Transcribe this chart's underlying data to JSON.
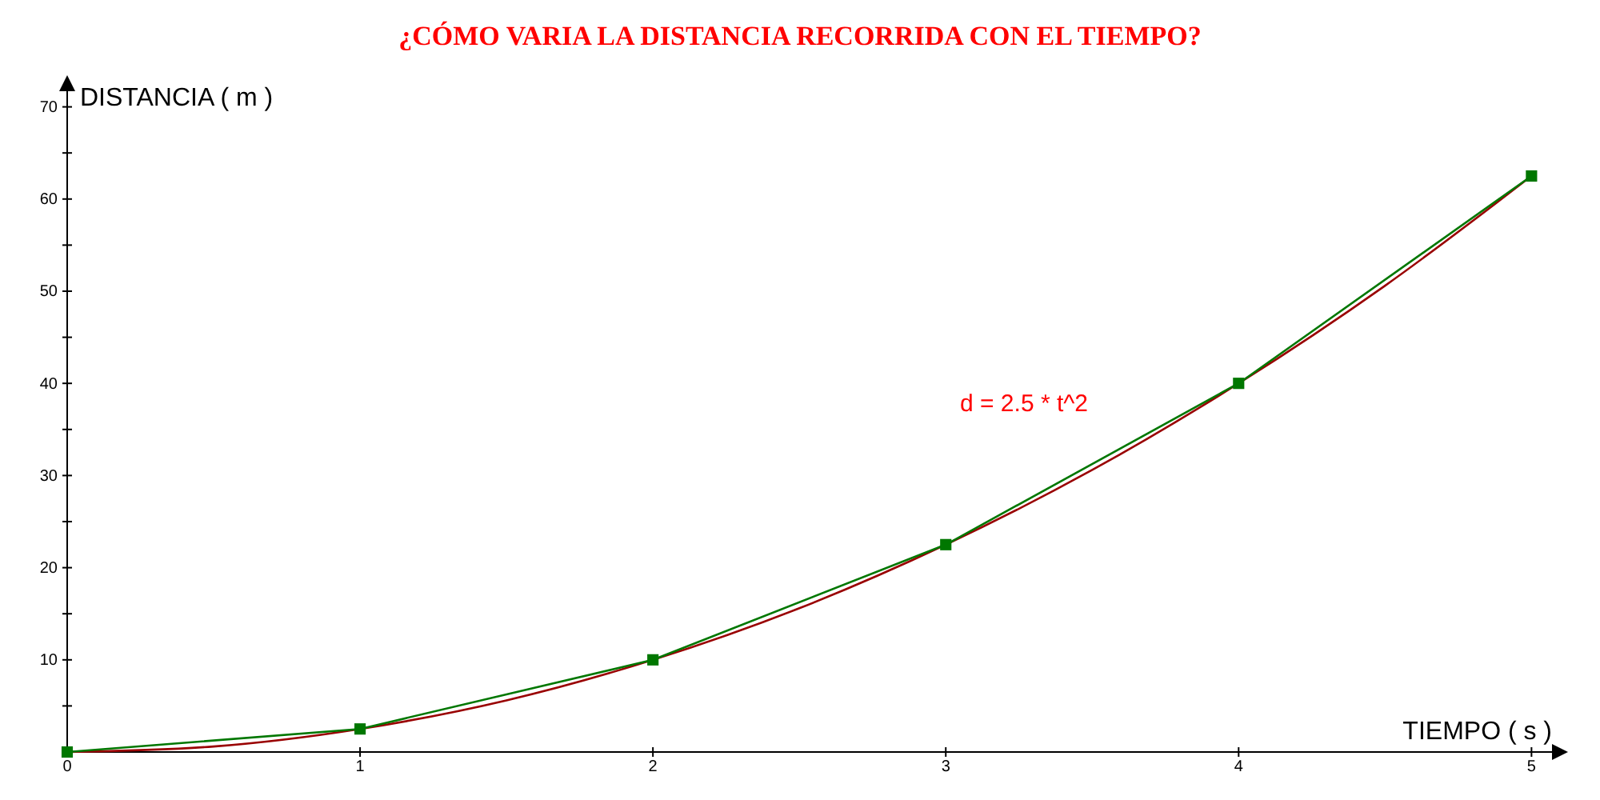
{
  "chart_data": {
    "type": "line",
    "title": "¿CÓMO VARIA LA DISTANCIA RECORRIDA CON EL TIEMPO?",
    "xlabel": "TIEMPO ( s )",
    "ylabel": "DISTANCIA ( m )",
    "xlim": [
      0,
      5.07
    ],
    "ylim": [
      0,
      71.7
    ],
    "xticks": [
      0,
      1,
      2,
      3,
      4,
      5
    ],
    "yticks": [
      {
        "value": 5,
        "label": null
      },
      10,
      {
        "value": 15,
        "label": null
      },
      20,
      {
        "value": 25,
        "label": null
      },
      30,
      {
        "value": 35,
        "label": null
      },
      40,
      {
        "value": 45,
        "label": null
      },
      50,
      {
        "value": 55,
        "label": null
      },
      60,
      {
        "value": 65,
        "label": null
      },
      70
    ],
    "grid": false,
    "series": [
      {
        "color": "#990000",
        "marker": "none",
        "x": [
          0,
          0.5,
          1,
          1.5,
          2,
          2.5,
          3,
          3.5,
          4,
          4.5,
          5
        ],
        "values": [
          0,
          0.6,
          2.5,
          5.6,
          10,
          15.6,
          22.5,
          30.6,
          40,
          50.6,
          62.5
        ]
      },
      {
        "color": "#007700",
        "marker": "square",
        "x": [
          0,
          1,
          2,
          3,
          4,
          5
        ],
        "values": [
          0,
          2.5,
          10,
          22.5,
          40,
          62.5
        ]
      }
    ],
    "annotations": [
      "d = 2.5 * t^2"
    ]
  }
}
